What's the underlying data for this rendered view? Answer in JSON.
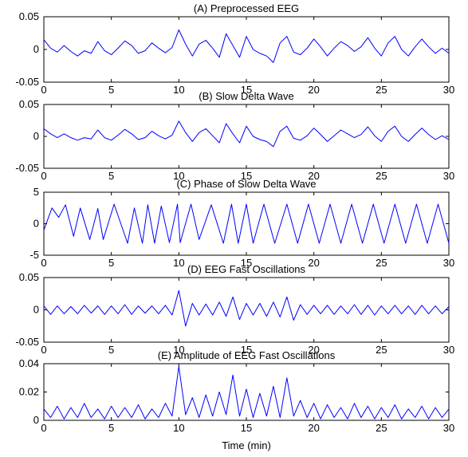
{
  "figure": {
    "xlabel": "Time (min)",
    "series_color": "#0000ff",
    "axes_color": "#000000",
    "background": "#ffffff"
  },
  "chart_data": [
    {
      "type": "line",
      "title": "(A) Preprocessed EEG",
      "xlim": [
        0,
        30
      ],
      "ylim": [
        -0.05,
        0.05
      ],
      "xticks": [
        0,
        5,
        10,
        15,
        20,
        25,
        30
      ],
      "xtick_labels": [
        "0",
        "5",
        "10",
        "15",
        "20",
        "25",
        "30"
      ],
      "yticks": [
        0.05,
        0,
        -0.05
      ],
      "ytick_labels": [
        "0.05",
        "0",
        "-0.05"
      ],
      "series": [
        {
          "x": [
            0,
            0.5,
            1,
            1.5,
            2,
            2.5,
            3,
            3.5,
            4,
            4.5,
            5,
            5.5,
            6,
            6.5,
            7,
            7.5,
            8,
            8.5,
            9,
            9.5,
            10,
            10.5,
            11,
            11.5,
            12,
            12.5,
            13,
            13.5,
            14,
            14.5,
            15,
            15.5,
            16,
            16.5,
            17,
            17.5,
            18,
            18.5,
            19,
            19.5,
            20,
            20.5,
            21,
            21.5,
            22,
            22.5,
            23,
            23.5,
            24,
            24.5,
            25,
            25.5,
            26,
            26.5,
            27,
            27.5,
            28,
            28.5,
            29,
            29.5,
            30
          ],
          "y": [
            0.015,
            0.002,
            -0.004,
            0.006,
            -0.003,
            -0.01,
            -0.002,
            -0.006,
            0.012,
            -0.002,
            -0.008,
            0.002,
            0.013,
            0.006,
            -0.006,
            -0.002,
            0.01,
            0.002,
            -0.005,
            0.003,
            0.03,
            0.008,
            -0.01,
            0.008,
            0.014,
            0.002,
            -0.012,
            0.024,
            0.006,
            -0.012,
            0.02,
            0,
            -0.006,
            -0.01,
            -0.02,
            0.01,
            0.02,
            -0.004,
            -0.008,
            0.002,
            0.016,
            0.004,
            -0.01,
            0.002,
            0.012,
            0.006,
            -0.003,
            0.004,
            0.018,
            0.002,
            -0.01,
            0.01,
            0.02,
            0,
            -0.01,
            0.004,
            0.016,
            0.004,
            -0.006,
            0.002,
            -0.006
          ]
        }
      ]
    },
    {
      "type": "line",
      "title": "(B) Slow Delta Wave",
      "xlim": [
        0,
        30
      ],
      "ylim": [
        -0.05,
        0.05
      ],
      "xticks": [
        0,
        5,
        10,
        15,
        20,
        25,
        30
      ],
      "xtick_labels": [
        "0",
        "5",
        "10",
        "15",
        "20",
        "25",
        "30"
      ],
      "yticks": [
        0.05,
        0,
        -0.05
      ],
      "ytick_labels": [
        "0.05",
        "0",
        "-0.05"
      ],
      "series": [
        {
          "x": [
            0,
            0.5,
            1,
            1.5,
            2,
            2.5,
            3,
            3.5,
            4,
            4.5,
            5,
            5.5,
            6,
            6.5,
            7,
            7.5,
            8,
            8.5,
            9,
            9.5,
            10,
            10.5,
            11,
            11.5,
            12,
            12.5,
            13,
            13.5,
            14,
            14.5,
            15,
            15.5,
            16,
            16.5,
            17,
            17.5,
            18,
            18.5,
            19,
            19.5,
            20,
            20.5,
            21,
            21.5,
            22,
            22.5,
            23,
            23.5,
            24,
            24.5,
            25,
            25.5,
            26,
            26.5,
            27,
            27.5,
            28,
            28.5,
            29,
            29.5,
            30
          ],
          "y": [
            0.012,
            0.004,
            -0.002,
            0.004,
            -0.002,
            -0.006,
            -0.002,
            -0.004,
            0.01,
            -0.002,
            -0.006,
            0.002,
            0.011,
            0.004,
            -0.005,
            -0.002,
            0.008,
            0.001,
            -0.004,
            0.002,
            0.024,
            0.006,
            -0.008,
            0.006,
            0.012,
            0.001,
            -0.01,
            0.02,
            0.004,
            -0.01,
            0.016,
            0,
            -0.005,
            -0.008,
            -0.016,
            0.008,
            0.016,
            -0.003,
            -0.006,
            0.001,
            0.013,
            0.003,
            -0.008,
            0.001,
            0.01,
            0.004,
            -0.002,
            0.003,
            0.015,
            0.001,
            -0.008,
            0.008,
            0.016,
            0,
            -0.008,
            0.003,
            0.013,
            0.003,
            -0.005,
            0.001,
            -0.005
          ]
        }
      ]
    },
    {
      "type": "line",
      "title": "(C) Phase of Slow Delta Wave",
      "xlim": [
        0,
        30
      ],
      "ylim": [
        -5,
        5
      ],
      "xticks": [
        0,
        5,
        10,
        15,
        20,
        25,
        30
      ],
      "xtick_labels": [
        "0",
        "5",
        "10",
        "15",
        "20",
        "25",
        "30"
      ],
      "yticks": [
        5,
        0,
        -5
      ],
      "ytick_labels": [
        "5",
        "0",
        "-5"
      ],
      "series": [
        {
          "x": [
            0,
            0.6,
            1.1,
            1.6,
            2.2,
            2.7,
            3.4,
            4.0,
            4.4,
            5.2,
            6.2,
            6.7,
            7.3,
            7.7,
            8.2,
            8.7,
            9.3,
            9.9,
            10.1,
            10.9,
            11.5,
            12.4,
            13.3,
            13.9,
            14.4,
            15.0,
            15.5,
            16.3,
            17.1,
            18.0,
            18.8,
            19.6,
            20.4,
            21.2,
            22.0,
            22.8,
            23.6,
            24.4,
            25.2,
            26.0,
            26.8,
            27.6,
            28.4,
            29.2,
            30.0
          ],
          "y": [
            -1,
            2.5,
            1,
            3,
            -2,
            2.5,
            -2.5,
            2.4,
            -2.5,
            3.1,
            -3.1,
            2.5,
            -3.1,
            3.0,
            -3.1,
            2.8,
            -3.0,
            3.1,
            -3.0,
            3.1,
            -2.5,
            3.0,
            -3.1,
            3.1,
            -3.1,
            3.1,
            -3.1,
            3.1,
            -3.1,
            3.1,
            -3.1,
            3.1,
            -3.1,
            3.1,
            -3.1,
            3.1,
            -3.1,
            3.1,
            -3.1,
            3.1,
            -3.1,
            3.1,
            -3.1,
            3.1,
            -3.1
          ]
        }
      ]
    },
    {
      "type": "line",
      "title": "(D) EEG Fast Oscillations",
      "xlim": [
        0,
        30
      ],
      "ylim": [
        -0.05,
        0.05
      ],
      "xticks": [
        0,
        5,
        10,
        15,
        20,
        25,
        30
      ],
      "xtick_labels": [
        "0",
        "5",
        "10",
        "15",
        "20",
        "25",
        "30"
      ],
      "yticks": [
        0.05,
        0,
        -0.05
      ],
      "ytick_labels": [
        "0.05",
        "0",
        "-0.05"
      ],
      "series": [
        {
          "x": [
            0,
            0.5,
            1,
            1.5,
            2,
            2.5,
            3,
            3.5,
            4,
            4.5,
            5,
            5.5,
            6,
            6.5,
            7,
            7.5,
            8,
            8.5,
            9,
            9.5,
            10,
            10.5,
            11,
            11.5,
            12,
            12.5,
            13,
            13.5,
            14,
            14.5,
            15,
            15.5,
            16,
            16.5,
            17,
            17.5,
            18,
            18.5,
            19,
            19.5,
            20,
            20.5,
            21,
            21.5,
            22,
            22.5,
            23,
            23.5,
            24,
            24.5,
            25,
            25.5,
            26,
            26.5,
            27,
            27.5,
            28,
            28.5,
            29,
            29.5,
            30
          ],
          "y": [
            0.006,
            -0.007,
            0.006,
            -0.006,
            0.005,
            -0.006,
            0.007,
            -0.005,
            0.006,
            -0.007,
            0.006,
            -0.006,
            0.008,
            -0.007,
            0.006,
            -0.005,
            0.006,
            -0.006,
            0.007,
            -0.008,
            0.03,
            -0.025,
            0.01,
            -0.008,
            0.009,
            -0.008,
            0.012,
            -0.01,
            0.02,
            -0.015,
            0.01,
            -0.008,
            0.01,
            -0.01,
            0.012,
            -0.011,
            0.02,
            -0.016,
            0.008,
            -0.007,
            0.007,
            -0.006,
            0.007,
            -0.007,
            0.006,
            -0.006,
            0.008,
            -0.007,
            0.007,
            -0.008,
            0.006,
            -0.006,
            0.007,
            -0.006,
            0.006,
            -0.007,
            0.007,
            -0.006,
            0.006,
            -0.006,
            0.005
          ]
        }
      ]
    },
    {
      "type": "line",
      "title": "(E) Amplitude of EEG Fast Oscillations",
      "xlim": [
        0,
        30
      ],
      "ylim": [
        0,
        0.04
      ],
      "xticks": [
        0,
        5,
        10,
        15,
        20,
        25,
        30
      ],
      "xtick_labels": [
        "0",
        "5",
        "10",
        "15",
        "20",
        "25",
        "30"
      ],
      "yticks": [
        0.04,
        0.02,
        0
      ],
      "ytick_labels": [
        "0.04",
        "0.02",
        "0"
      ],
      "series": [
        {
          "x": [
            0,
            0.5,
            1,
            1.5,
            2,
            2.5,
            3,
            3.5,
            4,
            4.5,
            5,
            5.5,
            6,
            6.5,
            7,
            7.5,
            8,
            8.5,
            9,
            9.5,
            10,
            10.5,
            11,
            11.5,
            12,
            12.5,
            13,
            13.5,
            14,
            14.5,
            15,
            15.5,
            16,
            16.5,
            17,
            17.5,
            18,
            18.5,
            19,
            19.5,
            20,
            20.5,
            21,
            21.5,
            22,
            22.5,
            23,
            23.5,
            24,
            24.5,
            25,
            25.5,
            26,
            26.5,
            27,
            27.5,
            28,
            28.5,
            29,
            29.5,
            30
          ],
          "y": [
            0.008,
            0.002,
            0.01,
            0.001,
            0.009,
            0.002,
            0.012,
            0.002,
            0.008,
            0.001,
            0.01,
            0.002,
            0.009,
            0.002,
            0.011,
            0.001,
            0.008,
            0.002,
            0.012,
            0.003,
            0.038,
            0.004,
            0.016,
            0.002,
            0.018,
            0.003,
            0.02,
            0.004,
            0.032,
            0.003,
            0.022,
            0.002,
            0.019,
            0.003,
            0.024,
            0.002,
            0.03,
            0.003,
            0.014,
            0.002,
            0.012,
            0.001,
            0.011,
            0.002,
            0.009,
            0.001,
            0.012,
            0.002,
            0.01,
            0.001,
            0.009,
            0.002,
            0.011,
            0.001,
            0.008,
            0.002,
            0.01,
            0.001,
            0.009,
            0.002,
            0.008
          ]
        }
      ]
    }
  ]
}
